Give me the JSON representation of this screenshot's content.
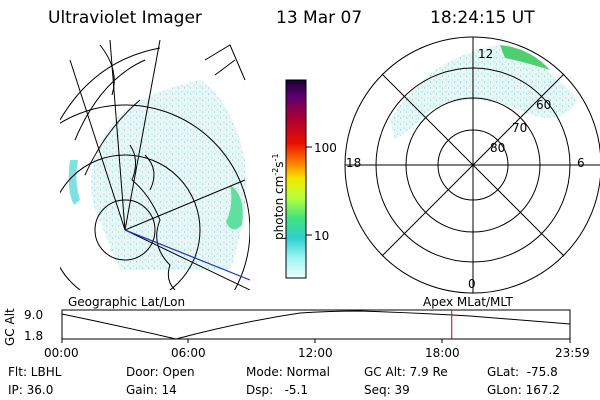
{
  "header": {
    "instrument": "Ultraviolet Imager",
    "date": "13 Mar 07",
    "time": "18:24:15 UT"
  },
  "colorbar": {
    "label_prefix": "photon cm",
    "label_exp1": "-2",
    "label_mid": "s",
    "label_exp2": "-1",
    "ticks": [
      "100",
      "10"
    ],
    "colors": [
      "#1a0030",
      "#5a0070",
      "#a00040",
      "#e00000",
      "#ff6000",
      "#ffb000",
      "#f0e000",
      "#c0ff40",
      "#60f060",
      "#30d0a0",
      "#40e0e0",
      "#b0ffff",
      "#e8ffff"
    ]
  },
  "polar_plot": {
    "labels": {
      "top": "12",
      "bottom": "0",
      "left": "18",
      "right": "6",
      "lat60": "60",
      "lat70": "70",
      "lat80": "80"
    }
  },
  "captions": {
    "geographic": "Geographic Lat/Lon",
    "apex": "Apex MLat/MLT"
  },
  "altitude_plot": {
    "ylabel": "GC Alt",
    "ytick_top": "9.0",
    "ytick_bottom": "1.8",
    "xticks": [
      "00:00",
      "06:00",
      "12:00",
      "18:00",
      "23:59"
    ],
    "current_time_hours": 18.4,
    "marker_color": "#cc0000"
  },
  "status": {
    "flt": "Flt: LBHL",
    "ip": "IP: 36.0",
    "door": "Door: Open",
    "gain": "Gain: 14",
    "mode": "Mode: Normal",
    "dsp": "Dsp:   -5.1",
    "gcalt": "GC Alt: 7.9 Re",
    "seq": "Seq: 39",
    "glat": "GLat:  -75.8",
    "glon": "GLon: 167.2"
  }
}
